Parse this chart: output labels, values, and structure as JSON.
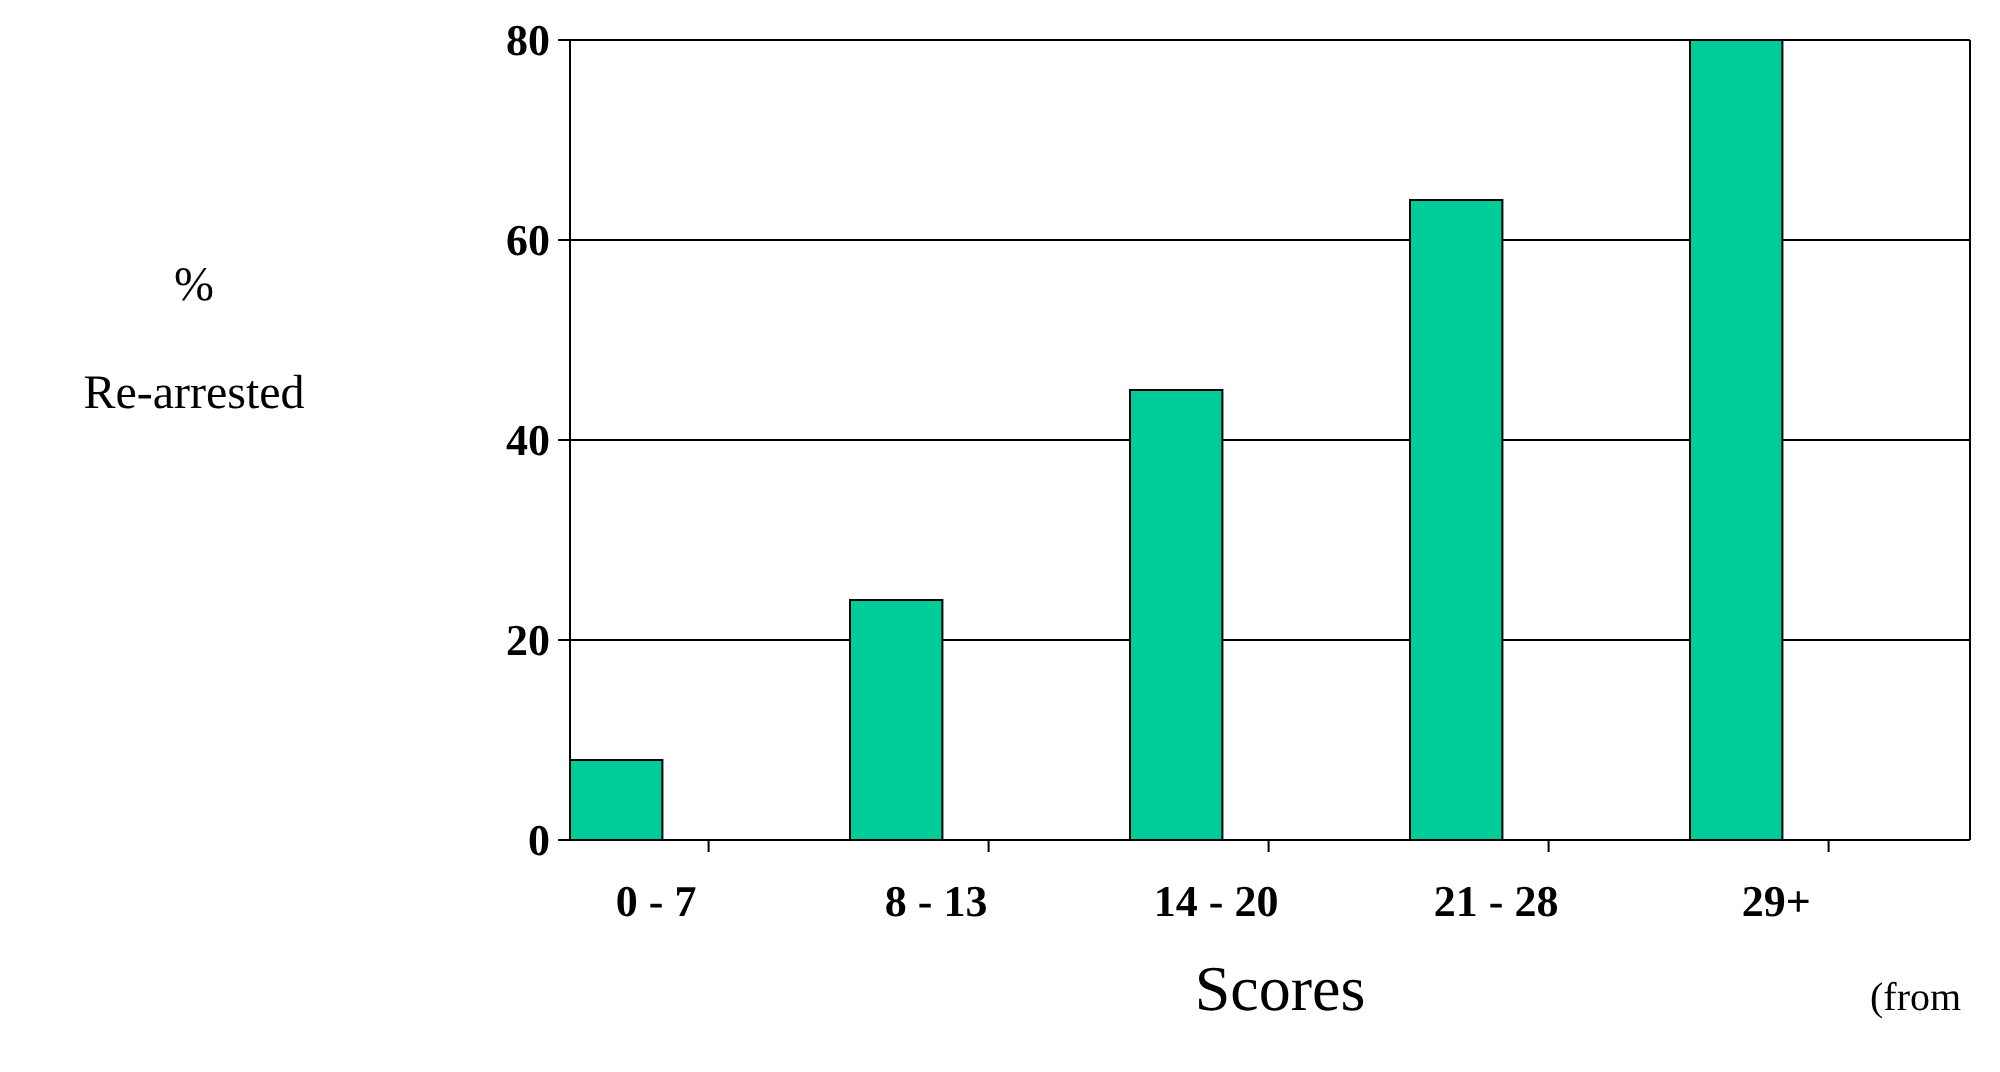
{
  "chart_data": {
    "type": "bar",
    "ylabel": "% Re-arrested",
    "xlabel": "Scores",
    "categories": [
      "0 - 7",
      "8 - 13",
      "14 - 20",
      "21 - 28",
      "29+"
    ],
    "values": [
      8,
      24,
      45,
      64,
      80
    ],
    "color": "#00cc99",
    "ylim": [
      0,
      80
    ],
    "yticks": [
      0,
      20,
      40,
      60,
      80
    ],
    "grid": "y",
    "annotations": [
      "(from"
    ]
  }
}
